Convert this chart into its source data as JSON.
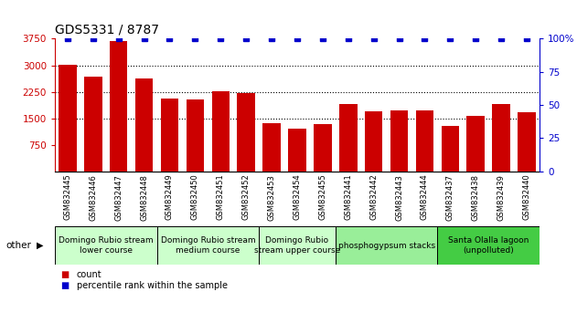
{
  "title": "GDS5331 / 8787",
  "samples": [
    "GSM832445",
    "GSM832446",
    "GSM832447",
    "GSM832448",
    "GSM832449",
    "GSM832450",
    "GSM832451",
    "GSM832452",
    "GSM832453",
    "GSM832454",
    "GSM832455",
    "GSM832441",
    "GSM832442",
    "GSM832443",
    "GSM832444",
    "GSM832437",
    "GSM832438",
    "GSM832439",
    "GSM832440"
  ],
  "counts": [
    3020,
    2680,
    3680,
    2620,
    2060,
    2030,
    2260,
    2210,
    1350,
    1210,
    1330,
    1900,
    1700,
    1720,
    1720,
    1280,
    1570,
    1900,
    1680
  ],
  "percentiles": [
    100,
    100,
    100,
    100,
    100,
    100,
    100,
    100,
    100,
    100,
    100,
    100,
    100,
    100,
    100,
    100,
    100,
    100,
    100
  ],
  "ylim_left": [
    0,
    3750
  ],
  "ylim_right": [
    0,
    100
  ],
  "yticks_left": [
    750,
    1500,
    2250,
    3000,
    3750
  ],
  "yticks_right": [
    0,
    25,
    50,
    75,
    100
  ],
  "grid_lines": [
    1500,
    2250,
    3000
  ],
  "bar_color": "#cc0000",
  "dot_color": "#0000cc",
  "groups": [
    {
      "label": "Domingo Rubio stream\nlower course",
      "start": 0,
      "end": 4,
      "color": "#ccffcc"
    },
    {
      "label": "Domingo Rubio stream\nmedium course",
      "start": 4,
      "end": 8,
      "color": "#ccffcc"
    },
    {
      "label": "Domingo Rubio\nstream upper course",
      "start": 8,
      "end": 11,
      "color": "#ccffcc"
    },
    {
      "label": "phosphogypsum stacks",
      "start": 11,
      "end": 15,
      "color": "#99ee99"
    },
    {
      "label": "Santa Olalla lagoon\n(unpolluted)",
      "start": 15,
      "end": 19,
      "color": "#44cc44"
    }
  ],
  "legend_count_color": "#cc0000",
  "legend_pct_color": "#0000cc",
  "background_color": "#ffffff",
  "xtick_bg_color": "#cccccc",
  "group_border_color": "#000000"
}
